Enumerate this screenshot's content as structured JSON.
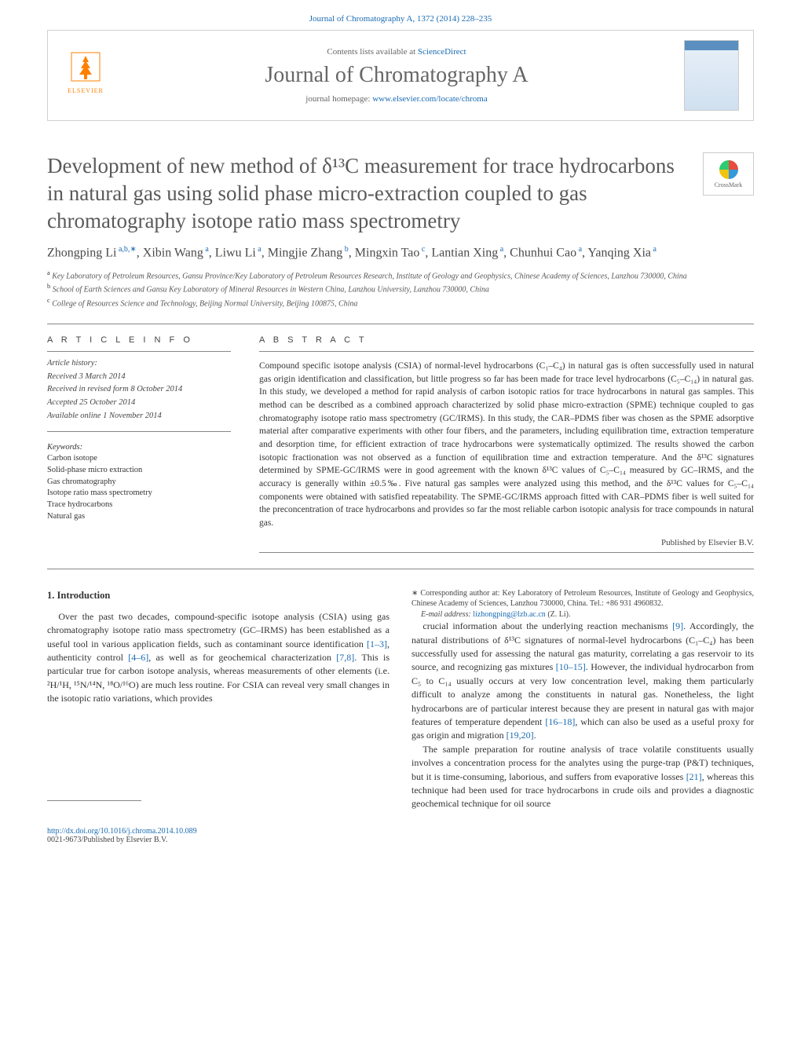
{
  "top_citation": "Journal of Chromatography A, 1372 (2014) 228–235",
  "header": {
    "elsevier": "ELSEVIER",
    "contents_prefix": "Contents lists available at ",
    "contents_link": "ScienceDirect",
    "journal_name": "Journal of Chromatography A",
    "homepage_prefix": "journal homepage: ",
    "homepage_link": "www.elsevier.com/locate/chroma"
  },
  "title": "Development of new method of δ¹³C measurement for trace hydrocarbons in natural gas using solid phase micro-extraction coupled to gas chromatography isotope ratio mass spectrometry",
  "crossmark": "CrossMark",
  "authors_html": "Zhongping Li<sup> a,b,∗</sup>, Xibin Wang<sup> a</sup>, Liwu Li<sup> a</sup>, Mingjie Zhang<sup> b</sup>, Mingxin Tao<sup> c</sup>, Lantian Xing<sup> a</sup>, Chunhui Cao<sup> a</sup>, Yanqing Xia<sup> a</sup>",
  "affiliations": [
    {
      "sup": "a",
      "text": "Key Laboratory of Petroleum Resources, Gansu Province/Key Laboratory of Petroleum Resources Research, Institute of Geology and Geophysics, Chinese Academy of Sciences, Lanzhou 730000, China"
    },
    {
      "sup": "b",
      "text": "School of Earth Sciences and Gansu Key Laboratory of Mineral Resources in Western China, Lanzhou University, Lanzhou 730000, China"
    },
    {
      "sup": "c",
      "text": "College of Resources Science and Technology, Beijing Normal University, Beijing 100875, China"
    }
  ],
  "info": {
    "heading": "A R T I C L E   I N F O",
    "history_label": "Article history:",
    "history": [
      "Received 3 March 2014",
      "Received in revised form 8 October 2014",
      "Accepted 25 October 2014",
      "Available online 1 November 2014"
    ],
    "kw_label": "Keywords:",
    "keywords": [
      "Carbon isotope",
      "Solid-phase micro extraction",
      "Gas chromatography",
      "Isotope ratio mass spectrometry",
      "Trace hydrocarbons",
      "Natural gas"
    ]
  },
  "abstract": {
    "heading": "A B S T R A C T",
    "text": "Compound specific isotope analysis (CSIA) of normal-level hydrocarbons (C₁–C₄) in natural gas is often successfully used in natural gas origin identification and classification, but little progress so far has been made for trace level hydrocarbons (C₅–C₁₄) in natural gas. In this study, we developed a method for rapid analysis of carbon isotopic ratios for trace hydrocarbons in natural gas samples. This method can be described as a combined approach characterized by solid phase micro-extraction (SPME) technique coupled to gas chromatography isotope ratio mass spectrometry (GC/IRMS). In this study, the CAR–PDMS fiber was chosen as the SPME adsorptive material after comparative experiments with other four fibers, and the parameters, including equilibration time, extraction temperature and desorption time, for efficient extraction of trace hydrocarbons were systematically optimized. The results showed the carbon isotopic fractionation was not observed as a function of equilibration time and extraction temperature. And the δ¹³C signatures determined by SPME-GC/IRMS were in good agreement with the known δ¹³C values of C₅–C₁₄ measured by GC–IRMS, and the accuracy is generally within ±0.5‰. Five natural gas samples were analyzed using this method, and the δ¹³C values for C₅–C₁₄ components were obtained with satisfied repeatability. The SPME-GC/IRMS approach fitted with CAR–PDMS fiber is well suited for the preconcentration of trace hydrocarbons and provides so far the most reliable carbon isotopic analysis for trace compounds in natural gas.",
    "publisher": "Published by Elsevier B.V."
  },
  "body": {
    "intro_heading": "1. Introduction",
    "p1_pre": "Over the past two decades, compound-specific isotope analysis (CSIA) using gas chromatography isotope ratio mass spectrometry (GC–IRMS) has been established as a useful tool in various application fields, such as contaminant source identification ",
    "r1": "[1–3]",
    "p1_mid1": ", authenticity control ",
    "r2": "[4–6]",
    "p1_mid2": ", as well as for geochemical characterization ",
    "r3": "[7,8]",
    "p1_post": ". This is particular true for carbon isotope analysis, whereas measurements of other elements (i.e. ²H/¹H, ¹⁵N/¹⁴N, ¹⁸O/¹⁶O) are much less routine. For CSIA can reveal very small changes in the isotopic ratio variations, which provides",
    "p2_pre": "crucial information about the underlying reaction mechanisms ",
    "r4": "[9]",
    "p2_mid1": ". Accordingly, the natural distributions of δ¹³C signatures of normal-level hydrocarbons (C₁–C₄) has been successfully used for assessing the natural gas maturity, correlating a gas reservoir to its source, and recognizing gas mixtures ",
    "r5": "[10–15]",
    "p2_mid2": ". However, the individual hydrocarbon from C₅ to C₁₄ usually occurs at very low concentration level, making them particularly difficult to analyze among the constituents in natural gas. Nonetheless, the light hydrocarbons are of particular interest because they are present in natural gas with major features of temperature dependent ",
    "r6": "[16–18]",
    "p2_mid3": ", which can also be used as a useful proxy for gas origin and migration ",
    "r7": "[19,20]",
    "p2_post": ".",
    "p3_pre": "The sample preparation for routine analysis of trace volatile constituents usually involves a concentration process for the analytes using the purge-trap (P&T) techniques, but it is time-consuming, laborious, and suffers from evaporative losses ",
    "r8": "[21]",
    "p3_post": ", whereas this technique had been used for trace hydrocarbons in crude oils and provides a diagnostic geochemical technique for oil source"
  },
  "footnote": {
    "corr": "∗ Corresponding author at: Key Laboratory of Petroleum Resources, Institute of Geology and Geophysics, Chinese Academy of Sciences, Lanzhou 730000, China. Tel.: +86 931 4960832.",
    "email_label": "E-mail address: ",
    "email": "lizhongping@lzb.ac.cn",
    "email_post": " (Z. Li)."
  },
  "footer": {
    "doi": "http://dx.doi.org/10.1016/j.chroma.2014.10.089",
    "issn": "0021-9673/Published by Elsevier B.V."
  },
  "colors": {
    "link": "#1a6bb3",
    "elsevier_orange": "#ff8000",
    "text": "#333333",
    "heading_gray": "#5a5a5a",
    "rule": "#888888"
  }
}
